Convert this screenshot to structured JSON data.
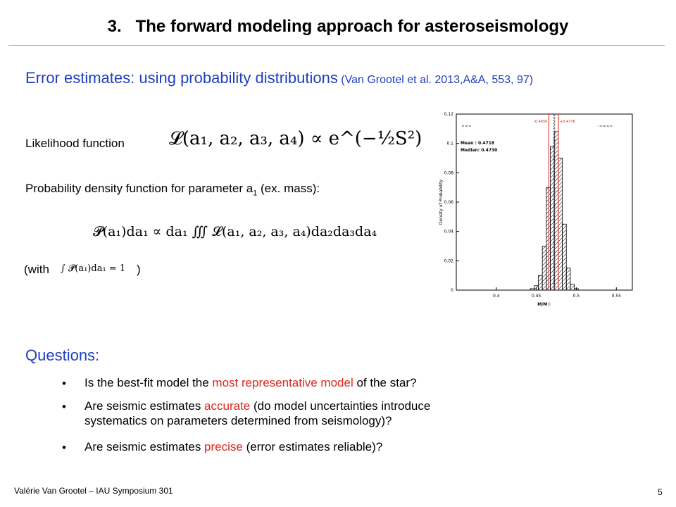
{
  "slide": {
    "title": "3.   The forward modeling approach for asteroseismology",
    "heading_main": "Error estimates: using probability distributions",
    "heading_ref": " (Van Grootel et al. 2013,A&A, 553, 97)",
    "likelihood_label": "Likelihood  function",
    "pdf_label_pre": "Probability density function for parameter a",
    "pdf_label_sub": "1",
    "pdf_label_post": " (ex. mass):",
    "with_open": "(with",
    "with_close": ")",
    "questions_title": "Questions:",
    "questions": [
      {
        "pre": "Is the best-fit model the ",
        "hl": "most representative model",
        "post": " of the star?"
      },
      {
        "pre": "Are seismic estimates ",
        "hl": "accurate",
        "post": " (do model uncertainties introduce",
        "line2": "systematics on parameters determined from seismology)?"
      },
      {
        "pre": "Are seismic estimates ",
        "hl": "precise",
        "post": " (error estimates reliable)?"
      }
    ],
    "footer": "Valérie Van Grootel – IAU Symposium 301",
    "page_number": "5"
  },
  "equations": {
    "likelihood": "𝓛(a₁, a₂, a₃, a₄) ∝ e^(−½S²)",
    "pdf": "𝓟(a₁)da₁ ∝ da₁ ∭ 𝓛(a₁, a₂, a₃, a₄)da₂da₃da₄",
    "normalization": "∫ 𝓟(a₁)da₁ = 1"
  },
  "colors": {
    "heading_blue": "#1f3fbf",
    "highlight_red": "#d9261c"
  },
  "chart_data": {
    "type": "bar",
    "ylabel": "Density of Probability",
    "xlabel": "M/M☉",
    "xlim": [
      0.35,
      0.57
    ],
    "ylim": [
      0,
      0.12
    ],
    "xticks": [
      0.4,
      0.45,
      0.5,
      0.55
    ],
    "xtick_labels": [
      "0.4",
      "0.45",
      "0.5",
      "0.55"
    ],
    "yticks": [
      0,
      0.02,
      0.04,
      0.06,
      0.08,
      0.1,
      0.12
    ],
    "ytick_labels": [
      "0",
      "0.02",
      "0.04",
      "0.06",
      "0.08",
      "0.1",
      "0.12"
    ],
    "bins": [
      {
        "x": 0.445,
        "y": 0.001
      },
      {
        "x": 0.45,
        "y": 0.003
      },
      {
        "x": 0.455,
        "y": 0.01
      },
      {
        "x": 0.46,
        "y": 0.03
      },
      {
        "x": 0.465,
        "y": 0.07
      },
      {
        "x": 0.47,
        "y": 0.098
      },
      {
        "x": 0.475,
        "y": 0.108
      },
      {
        "x": 0.48,
        "y": 0.09
      },
      {
        "x": 0.485,
        "y": 0.045
      },
      {
        "x": 0.49,
        "y": 0.015
      },
      {
        "x": 0.495,
        "y": 0.004
      },
      {
        "x": 0.5,
        "y": 0.001
      }
    ],
    "bin_width": 0.005,
    "mean_label": "Mean   : 0.4718",
    "median_label": "Median: 0.4730",
    "mean": 0.4718,
    "median": 0.473,
    "lower_bound": 0.4656,
    "upper_bound": 0.4776,
    "lower_label": "-0.4656",
    "upper_label": "+0.4776"
  }
}
